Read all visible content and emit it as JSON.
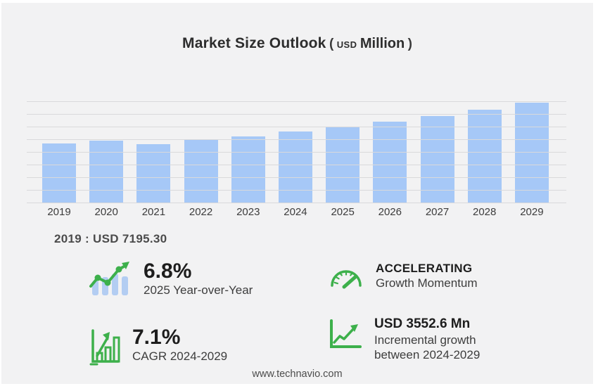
{
  "title": {
    "main": "Market Size Outlook",
    "paren_open": "(",
    "unit_small": "USD",
    "unit": "Million",
    "paren_close": ")"
  },
  "chart_data": {
    "type": "bar",
    "title": "Market Size Outlook (USD Million)",
    "categories": [
      "2019",
      "2020",
      "2021",
      "2022",
      "2023",
      "2024",
      "2025",
      "2026",
      "2027",
      "2028",
      "2029"
    ],
    "values": [
      7195.3,
      7600,
      7170,
      7690,
      8110,
      8670,
      9260,
      9910,
      10620,
      11330,
      12220
    ],
    "ylabel": "",
    "xlabel": "",
    "ylim": [
      0,
      12400
    ],
    "grid": "horizontal",
    "gridline_count": 9,
    "legend": "none",
    "annotation": "2019 : USD 7195.30"
  },
  "base_year_label": "2019 : USD  7195.30",
  "stats": [
    {
      "icon": "trend-line-bars-icon",
      "value": "6.8%",
      "label": "2025 Year-over-Year"
    },
    {
      "icon": "gauge-icon",
      "value": "ACCELERATING",
      "label": "Growth Momentum"
    },
    {
      "icon": "bar-growth-icon",
      "value": "7.1%",
      "label": "CAGR 2024-2029"
    },
    {
      "icon": "incremental-growth-icon",
      "value": "USD 3552.6 Mn",
      "label": "Incremental growth",
      "label2": "between 2024-2029"
    }
  ],
  "footer": {
    "website": "www.technavio.com"
  },
  "colors": {
    "panel_bg": "#f2f2f3",
    "bar": "#a6c8f7",
    "gridline": "#d9d9db",
    "accent_green": "#3db04b",
    "icon_bar_blue": "#b3cdf2",
    "text_dark": "#1d1d1d"
  }
}
